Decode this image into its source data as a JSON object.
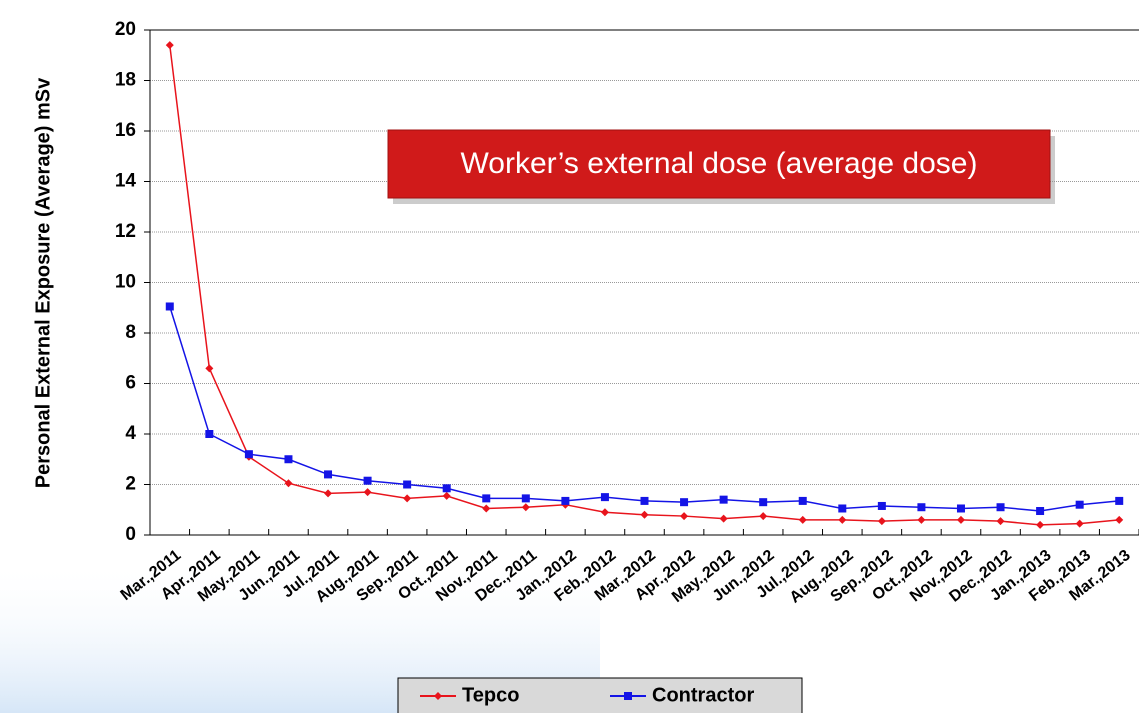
{
  "chart_data": {
    "type": "line",
    "y_label": "Personal External Exposure (Average) mSv",
    "annotation": "Worker’s external dose (average dose)",
    "categories": [
      "Mar.,2011",
      "Apr.,2011",
      "May.,2011",
      "Jun.,2011",
      "Jul.,2011",
      "Aug.,2011",
      "Sep.,2011",
      "Oct.,2011",
      "Nov.,2011",
      "Dec.,2011",
      "Jan.,2012",
      "Feb.,2012",
      "Mar.,2012",
      "Apr.,2012",
      "May.,2012",
      "Jun.,2012",
      "Jul.,2012",
      "Aug.,2012",
      "Sep.,2012",
      "Oct.,2012",
      "Nov.,2012",
      "Dec.,2012",
      "Jan.,2013",
      "Feb.,2013",
      "Mar.,2013"
    ],
    "series": [
      {
        "name": "Tepco",
        "color": "#e8141c",
        "values": [
          19.4,
          6.6,
          3.1,
          2.05,
          1.65,
          1.7,
          1.45,
          1.55,
          1.05,
          1.1,
          1.2,
          0.9,
          0.8,
          0.75,
          0.65,
          0.75,
          0.6,
          0.6,
          0.55,
          0.6,
          0.6,
          0.55,
          0.4,
          0.45,
          0.6
        ]
      },
      {
        "name": "Contractor",
        "color": "#1414e6",
        "values": [
          9.05,
          4.0,
          3.2,
          3.0,
          2.4,
          2.15,
          2.0,
          1.85,
          1.45,
          1.45,
          1.35,
          1.5,
          1.35,
          1.3,
          1.4,
          1.3,
          1.35,
          1.05,
          1.15,
          1.1,
          1.05,
          1.1,
          0.95,
          1.2,
          1.35
        ]
      }
    ],
    "ylim": [
      0,
      20
    ],
    "yticks": [
      0,
      2,
      4,
      6,
      8,
      10,
      12,
      14,
      16,
      18,
      20
    ],
    "grid": true,
    "legend": "bottom"
  }
}
